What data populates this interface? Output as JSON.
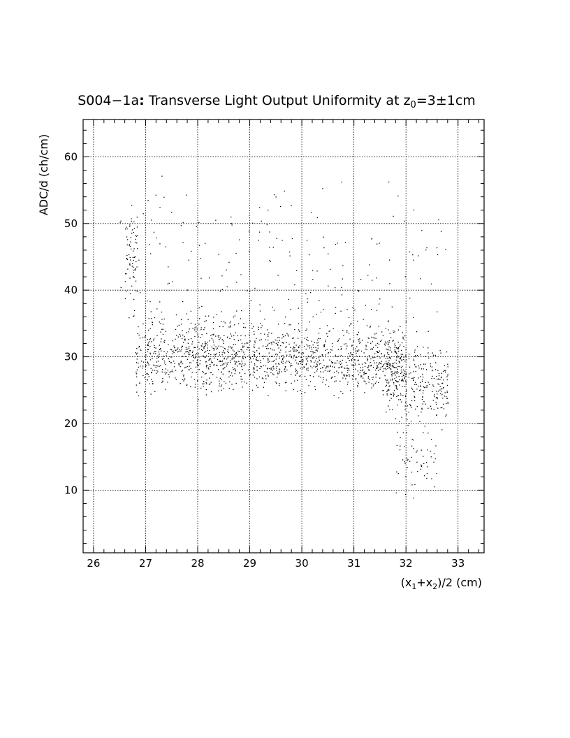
{
  "chart_data": {
    "type": "scatter",
    "title": {
      "main": "S004−1a",
      "colon": ":",
      "rest": " Transverse Light Output Uniformity at z",
      "sub": "0",
      "tail": "=3±1cm"
    },
    "xlabel": {
      "p1": "(x",
      "s1": "1",
      "p2": "+x",
      "s2": "2",
      "p3": ")/2 (cm)"
    },
    "ylabel": "ADC/d (ch/cm)",
    "xlim": [
      25.8,
      33.5
    ],
    "ylim": [
      0.6,
      65.6
    ],
    "x_ticks": [
      "26",
      "27",
      "28",
      "29",
      "30",
      "31",
      "32",
      "33"
    ],
    "y_ticks": [
      "10",
      "20",
      "30",
      "40",
      "50",
      "60"
    ],
    "x_tick_values": [
      26,
      27,
      28,
      29,
      30,
      31,
      32,
      33
    ],
    "y_tick_values": [
      10,
      20,
      30,
      40,
      50,
      60
    ],
    "grid": true,
    "dot_color": "#000000",
    "clusters": [
      {
        "x_range": [
          26.8,
          32.0
        ],
        "y_center": 29.5,
        "y_spread": 3.2,
        "count": 1200
      },
      {
        "x_range": [
          27.0,
          31.8
        ],
        "y_center": 33.0,
        "y_spread": 4.0,
        "count": 300
      },
      {
        "x_range": [
          31.6,
          32.8
        ],
        "y_center": 26.0,
        "y_spread": 4.0,
        "count": 300
      },
      {
        "x_range": [
          26.6,
          26.85
        ],
        "y_center": 45.0,
        "y_spread": 5.0,
        "count": 70
      },
      {
        "x_range": [
          31.8,
          32.6
        ],
        "y_center": 15.0,
        "y_spread": 4.0,
        "count": 60
      },
      {
        "x_range": [
          26.5,
          32.8
        ],
        "y_center": 45.0,
        "y_spread": 8.0,
        "count": 170
      }
    ]
  }
}
